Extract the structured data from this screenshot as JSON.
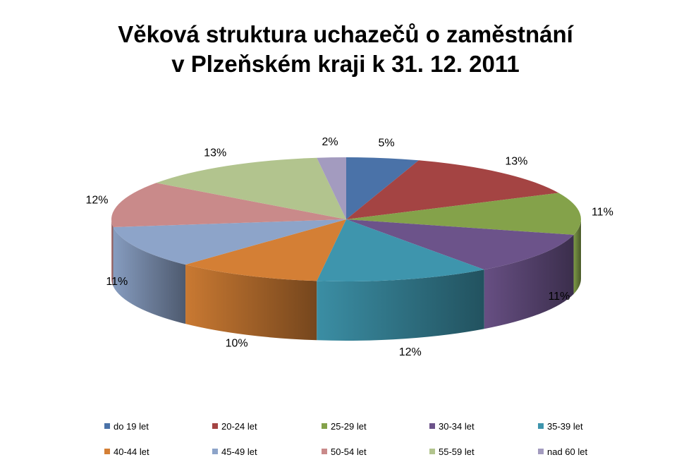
{
  "chart_data": {
    "type": "pie",
    "style": "3d",
    "title_lines": [
      "Věková struktura uchazečů o zaměstnání",
      "v Plzeňském kraji k 31. 12. 2011"
    ],
    "categories": [
      "do 19 let",
      "20-24 let",
      "25-29 let",
      "30-34 let",
      "35-39 let",
      "40-44 let",
      "45-49 let",
      "50-54 let",
      "55-59 let",
      "nad 60 let"
    ],
    "values": [
      5,
      13,
      11,
      11,
      12,
      10,
      11,
      12,
      13,
      2
    ],
    "data_labels": [
      "5%",
      "13%",
      "11%",
      "11%",
      "12%",
      "10%",
      "11%",
      "12%",
      "13%",
      "2%"
    ],
    "colors": [
      "#4a72a8",
      "#a44443",
      "#84a24a",
      "#6c538a",
      "#3e95ad",
      "#d47f35",
      "#8da4c9",
      "#c98a8a",
      "#b2c48e",
      "#a39bbf"
    ],
    "legend_position": "bottom"
  }
}
